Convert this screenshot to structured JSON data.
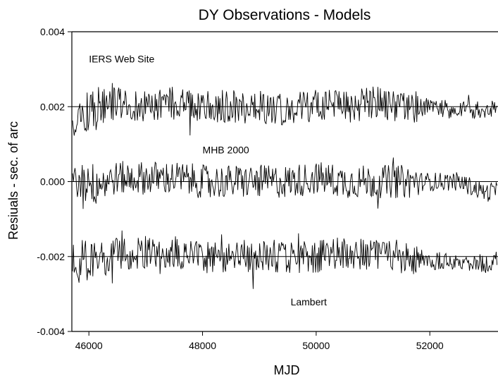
{
  "chart_data": {
    "type": "line",
    "title": "DY Observations - Models",
    "xlabel": "MJD",
    "ylabel": "Resiuals - sec. of arc",
    "xlim": [
      45700,
      53200
    ],
    "ylim": [
      -0.004,
      0.004
    ],
    "xticks": [
      46000,
      48000,
      50000,
      52000
    ],
    "xtick_labels": [
      "46000",
      "48000",
      "50000",
      "52000"
    ],
    "yticks": [
      -0.004,
      -0.002,
      0.0,
      0.002,
      0.004
    ],
    "ytick_labels": [
      "-0.004",
      "-0.002",
      "0.000",
      "0.002",
      "0.004"
    ],
    "grid": false,
    "legend": "none",
    "reference_lines": [
      0.002,
      0.0,
      -0.002
    ],
    "series": [
      {
        "name": "IERS Web Site",
        "label_position": [
          46000,
          0.00318
        ],
        "offset": 0.002,
        "x": [
          45700,
          46000,
          46500,
          47000,
          47500,
          48000,
          48500,
          49000,
          49500,
          50000,
          50500,
          51000,
          51500,
          52000,
          52500,
          53000,
          53200
        ],
        "values": [
          0.0018,
          0.0019,
          0.0021,
          0.002,
          0.0021,
          0.002,
          0.002,
          0.002,
          0.0019,
          0.002,
          0.002,
          0.0021,
          0.002,
          0.002,
          0.0019,
          0.0019,
          0.002
        ]
      },
      {
        "name": "MHB 2000",
        "label_position": [
          48000,
          0.00075
        ],
        "offset": 0.0,
        "x": [
          45700,
          46000,
          46500,
          47000,
          47500,
          48000,
          48500,
          49000,
          49500,
          50000,
          50500,
          51000,
          51500,
          52000,
          52500,
          53000,
          53200
        ],
        "values": [
          -0.0002,
          -0.0001,
          0.0001,
          0.0001,
          0.0001,
          0.0,
          0.0,
          0.0,
          0.0,
          0.0001,
          0.0,
          0.0,
          0.0,
          0.0,
          0.0,
          -0.0003,
          -0.0002
        ]
      },
      {
        "name": "Lambert",
        "label_position": [
          49550,
          -0.0033
        ],
        "offset": -0.002,
        "x": [
          45700,
          46000,
          46500,
          47000,
          47500,
          48000,
          48500,
          49000,
          49500,
          50000,
          50500,
          51000,
          51500,
          52000,
          52500,
          53000,
          53200
        ],
        "values": [
          -0.0022,
          -0.0021,
          -0.0019,
          -0.0019,
          -0.0019,
          -0.002,
          -0.002,
          -0.002,
          -0.002,
          -0.002,
          -0.0019,
          -0.002,
          -0.002,
          -0.0021,
          -0.0021,
          -0.0022,
          -0.0021
        ]
      }
    ]
  }
}
